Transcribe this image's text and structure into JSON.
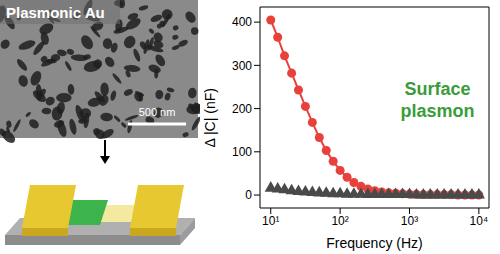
{
  "chart_data": {
    "type": "scatter",
    "x_label": "Frequency (Hz)",
    "y_label": "Δ |C| (nF)",
    "annotation": "Surface plasmon",
    "log": "x",
    "x": [
      10,
      12.6,
      15.8,
      20,
      25.1,
      31.6,
      39.8,
      50.1,
      63.1,
      79.4,
      100,
      126,
      158,
      200,
      251,
      316,
      398,
      501,
      631,
      794,
      1000,
      1259,
      1585,
      1995,
      2512,
      3162,
      3981,
      5012,
      6310,
      7943,
      10000
    ],
    "series": [
      {
        "color": "#e8413c",
        "marker": "circle",
        "line_style": "solid",
        "values": [
          405,
          365,
          322,
          282,
          243,
          205,
          168,
          133,
          103,
          78,
          57,
          41,
          29,
          20,
          14,
          10,
          7,
          5,
          4,
          3,
          2,
          2,
          1,
          1,
          1,
          1,
          1,
          0,
          0,
          0,
          0
        ]
      },
      {
        "color": "#4a4a4a",
        "marker": "triangle",
        "line_style": "none",
        "values": [
          16,
          14,
          12,
          10,
          8,
          7,
          6,
          5,
          4,
          3,
          3,
          2,
          2,
          2,
          1,
          1,
          1,
          1,
          1,
          1,
          1,
          0,
          0,
          0,
          0,
          0,
          0,
          0,
          0,
          0,
          0
        ]
      }
    ],
    "xlim": [
      7,
      14000
    ],
    "xticks": [
      {
        "value": 10,
        "label": "10¹"
      },
      {
        "value": 100,
        "label": "10²"
      },
      {
        "value": 1000,
        "label": "10³"
      },
      {
        "value": 10000,
        "label": "10⁴"
      }
    ],
    "ylim": [
      -30,
      435
    ],
    "yticks": [
      0,
      100,
      200,
      300,
      400
    ]
  },
  "panel": {
    "label": "Plasmonic Au",
    "scale_bar": "500 nm"
  }
}
